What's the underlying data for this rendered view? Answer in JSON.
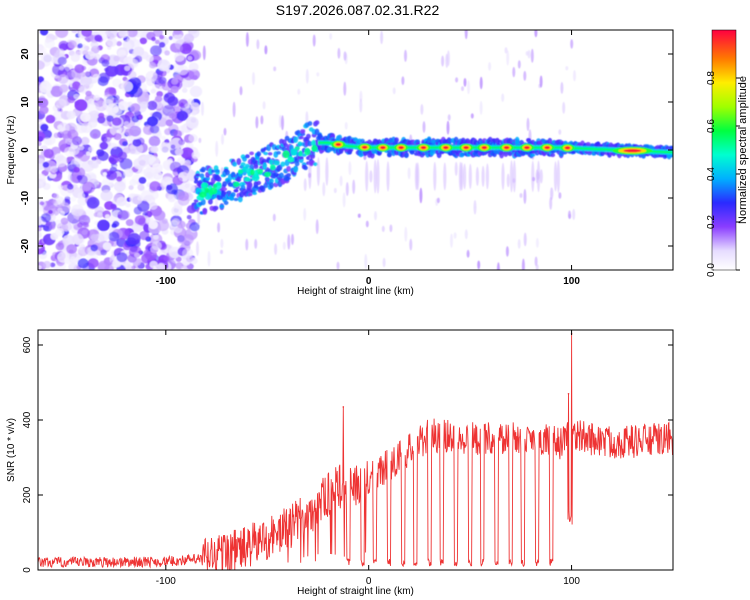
{
  "title": "S197.2026.087.02.31.R22",
  "chart_data": [
    {
      "type": "heatmap",
      "title": "S197.2026.087.02.31.R22",
      "xlabel": "Height of straight line (km)",
      "ylabel": "Frequency (Hz)",
      "xlim": [
        -163,
        150
      ],
      "ylim": [
        -25,
        25
      ],
      "xticks": [
        -100,
        0,
        100
      ],
      "yticks": [
        -20,
        -10,
        0,
        10,
        20
      ],
      "colorbar": {
        "label": "Normalized spectral amplitude",
        "range": [
          0,
          1
        ],
        "ticks": [
          0.0,
          0.2,
          0.4,
          0.6,
          0.8
        ]
      },
      "noise_region_x": [
        -163,
        -85
      ],
      "ridge": {
        "x": [
          -85,
          -70,
          -55,
          -40,
          -28,
          -20,
          -10,
          0,
          50,
          95,
          150
        ],
        "freq": [
          -9,
          -7,
          -4.5,
          -2,
          1.5,
          1.5,
          0.8,
          0.5,
          0.5,
          0.5,
          -0.5
        ],
        "peak_x": [
          -15,
          -2,
          7,
          16,
          27,
          38,
          48,
          57,
          68,
          78,
          88,
          98,
          130
        ]
      }
    },
    {
      "type": "line",
      "xlabel": "Height of straight line (km)",
      "ylabel": "SNR (10 * v/v)",
      "xlim": [
        -163,
        150
      ],
      "ylim": [
        0,
        640
      ],
      "xticks": [
        -100,
        0,
        100
      ],
      "yticks": [
        0,
        200,
        400,
        600
      ],
      "series": [
        {
          "name": "SNR",
          "color": "#ee3333",
          "envelope_x": [
            -163,
            -100,
            -82,
            -60,
            -40,
            -30,
            -20,
            -12,
            -5,
            5,
            15,
            25,
            30,
            50,
            80,
            92,
            96,
            100,
            120,
            150
          ],
          "envelope_y": [
            20,
            22,
            30,
            60,
            110,
            150,
            200,
            230,
            225,
            260,
            300,
            340,
            360,
            350,
            355,
            340,
            340,
            360,
            340,
            350
          ],
          "dips_x": [
            -10,
            -3,
            3,
            10,
            17,
            23,
            30,
            36,
            43,
            50,
            56,
            63,
            70,
            76,
            83,
            90
          ],
          "spikes": [
            {
              "x": -12.5,
              "y": 435
            },
            {
              "x": 98.5,
              "y": 470
            },
            {
              "x": 100,
              "y": 630
            }
          ]
        }
      ]
    }
  ]
}
